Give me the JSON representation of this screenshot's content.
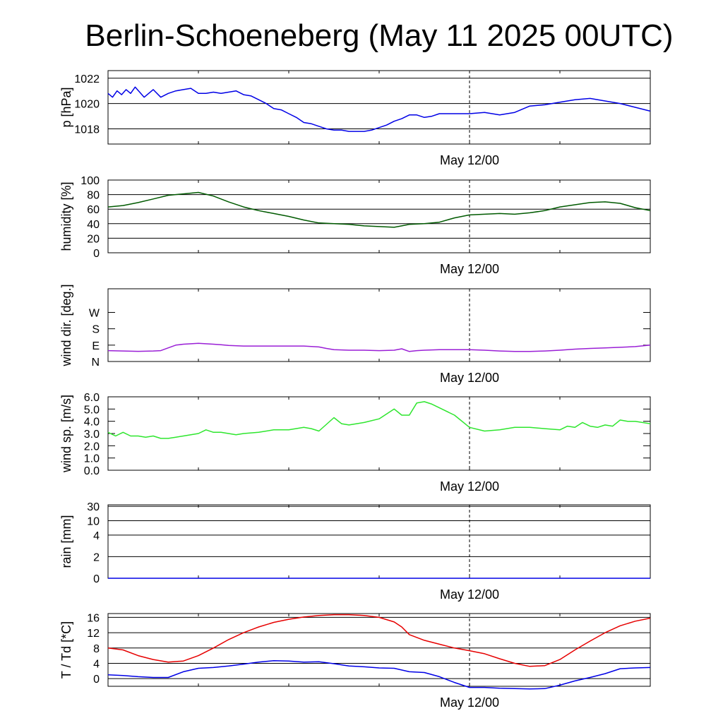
{
  "chart_data": [
    {
      "type": "line",
      "title": "Berlin-Schoeneberg (May 11 2025 00UTC)",
      "ylabel": "p [hPa]",
      "x_tick_label": "May 12/00",
      "ylim": [
        1016.8,
        1022.6
      ],
      "yticks": [
        1018,
        1020,
        1022
      ],
      "ytick_labels": [
        "1018",
        "1020",
        "1022"
      ],
      "grid": true,
      "series": [
        {
          "color": "#0000e6",
          "x": [
            0,
            0.3,
            0.6,
            0.9,
            1.2,
            1.5,
            1.8,
            2.1,
            2.4,
            2.7,
            3,
            3.5,
            4,
            4.5,
            5,
            5.5,
            6,
            6.5,
            7,
            7.5,
            8,
            8.5,
            9,
            9.5,
            10,
            10.5,
            11,
            11.5,
            12,
            12.5,
            13,
            13.5,
            14,
            14.5,
            15,
            15.5,
            16,
            16.5,
            17,
            17.5,
            18,
            18.5,
            19,
            19.5,
            20,
            20.5,
            21,
            21.5,
            22,
            22.5,
            23,
            23.5,
            24,
            25,
            26,
            27,
            28,
            29,
            30,
            31,
            32,
            33,
            34,
            35,
            36
          ],
          "y": [
            1020.8,
            1020.5,
            1021.0,
            1020.7,
            1021.1,
            1020.8,
            1021.3,
            1020.9,
            1020.5,
            1020.8,
            1021.1,
            1020.5,
            1020.8,
            1021.0,
            1021.1,
            1021.2,
            1020.8,
            1020.8,
            1020.9,
            1020.8,
            1020.9,
            1021.0,
            1020.7,
            1020.6,
            1020.3,
            1020.0,
            1019.6,
            1019.5,
            1019.2,
            1018.9,
            1018.5,
            1018.4,
            1018.2,
            1018.0,
            1017.9,
            1017.9,
            1017.8,
            1017.8,
            1017.8,
            1017.9,
            1018.1,
            1018.3,
            1018.6,
            1018.8,
            1019.1,
            1019.1,
            1018.9,
            1019.0,
            1019.2,
            1019.2,
            1019.2,
            1019.2,
            1019.2,
            1019.3,
            1019.1,
            1019.3,
            1019.8,
            1019.9,
            1020.1,
            1020.3,
            1020.4,
            1020.2,
            1020.0,
            1019.7,
            1019.4
          ]
        }
      ]
    },
    {
      "type": "line",
      "ylabel": "humidity [%]",
      "x_tick_label": "May 12/00",
      "ylim": [
        0,
        100
      ],
      "yticks": [
        0,
        20,
        40,
        60,
        80,
        100
      ],
      "ytick_labels": [
        "0",
        "20",
        "40",
        "60",
        "80",
        "100"
      ],
      "grid": true,
      "series": [
        {
          "color": "#005a00",
          "x": [
            0,
            1,
            2,
            3,
            4,
            5,
            6,
            7,
            8,
            9,
            10,
            11,
            12,
            13,
            14,
            15,
            16,
            17,
            18,
            19,
            19.5,
            20,
            21,
            22,
            23,
            24,
            25,
            26,
            27,
            28,
            29,
            30,
            31,
            32,
            33,
            34,
            35,
            36
          ],
          "y": [
            63,
            65,
            69,
            74,
            79,
            81,
            83,
            78,
            70,
            63,
            58,
            54,
            50,
            45,
            41,
            40,
            39,
            37,
            36,
            35,
            37,
            39,
            40,
            42,
            48,
            52,
            53,
            54,
            53,
            55,
            58,
            63,
            66,
            69,
            70,
            68,
            62,
            58
          ]
        }
      ]
    },
    {
      "type": "line",
      "ylabel": "wind dir. [deg.]",
      "x_tick_label": "May 12/00",
      "ylim": [
        0,
        400
      ],
      "yticks": [
        0,
        90,
        180,
        270
      ],
      "ytick_labels": [
        "N",
        "E",
        "S",
        "W"
      ],
      "grid": false,
      "series": [
        {
          "color": "#9a1fd6",
          "x": [
            0,
            1,
            2,
            3,
            3.5,
            4,
            4.5,
            5,
            6,
            7,
            7.5,
            8,
            9,
            10,
            11,
            12,
            13,
            14,
            14.5,
            15,
            16,
            17,
            18,
            19,
            19.5,
            20,
            20.5,
            21,
            22,
            23,
            24,
            25,
            26,
            27,
            28,
            29,
            30,
            31,
            32,
            33,
            34,
            35,
            36
          ],
          "y": [
            60,
            58,
            56,
            58,
            60,
            75,
            90,
            95,
            100,
            95,
            92,
            88,
            85,
            85,
            85,
            85,
            85,
            80,
            72,
            65,
            62,
            62,
            60,
            62,
            70,
            55,
            60,
            62,
            65,
            65,
            65,
            62,
            58,
            55,
            55,
            58,
            62,
            68,
            72,
            75,
            78,
            82,
            90
          ]
        }
      ]
    },
    {
      "type": "line",
      "ylabel": "wind sp. [m/s]",
      "x_tick_label": "May 12/00",
      "ylim": [
        0,
        6
      ],
      "yticks": [
        0,
        1,
        2,
        3,
        4,
        5,
        6
      ],
      "ytick_labels": [
        "0.0",
        "1.0",
        "2.0",
        "3.0",
        "4.0",
        "5.0",
        "6.0"
      ],
      "grid": false,
      "series": [
        {
          "color": "#2ee62e",
          "x": [
            0,
            0.5,
            1,
            1.5,
            2,
            2.5,
            3,
            3.5,
            4,
            4.5,
            5,
            5.5,
            6,
            6.5,
            7,
            7.5,
            8,
            8.5,
            9,
            10,
            11,
            12,
            13,
            13.5,
            14,
            15,
            15.5,
            16,
            16.5,
            17,
            18,
            19,
            19.5,
            20,
            20.5,
            21,
            21.5,
            22,
            23,
            24,
            25,
            26,
            27,
            28,
            29,
            30,
            30.5,
            31,
            31.5,
            32,
            32.5,
            33,
            33.5,
            34,
            34.5,
            35,
            36
          ],
          "y": [
            3.1,
            2.8,
            3.1,
            2.8,
            2.8,
            2.7,
            2.8,
            2.6,
            2.6,
            2.7,
            2.8,
            2.9,
            3.0,
            3.3,
            3.1,
            3.1,
            3.0,
            2.9,
            3.0,
            3.1,
            3.3,
            3.3,
            3.5,
            3.4,
            3.2,
            4.3,
            3.8,
            3.7,
            3.8,
            3.9,
            4.2,
            5.0,
            4.5,
            4.5,
            5.5,
            5.6,
            5.4,
            5.1,
            4.5,
            3.5,
            3.2,
            3.3,
            3.5,
            3.5,
            3.4,
            3.3,
            3.6,
            3.5,
            3.9,
            3.6,
            3.5,
            3.7,
            3.6,
            4.1,
            4.0,
            4.0,
            3.8
          ]
        }
      ]
    },
    {
      "type": "line",
      "ylabel": "rain [mm]",
      "x_tick_label": "May 12/00",
      "ylim": [
        0,
        30
      ],
      "yticks": [
        0,
        2,
        4,
        10,
        30
      ],
      "ytick_labels": [
        "0",
        "2",
        "4",
        "10",
        "30"
      ],
      "ytick_fractions": [
        0,
        0.294,
        0.588,
        0.784,
        0.98
      ],
      "grid": true,
      "series": [
        {
          "color": "#0000e6",
          "x": [
            0,
            36
          ],
          "y": [
            0,
            0
          ]
        }
      ]
    },
    {
      "type": "line",
      "ylabel": "T / Td [*C]",
      "x_tick_label": "May 12/00",
      "ylim": [
        -2,
        17
      ],
      "yticks": [
        0,
        4,
        8,
        12,
        16
      ],
      "ytick_labels": [
        "0",
        "4",
        "8",
        "12",
        "16"
      ],
      "grid": true,
      "series": [
        {
          "color": "#e60000",
          "x": [
            0,
            1,
            2,
            3,
            4,
            5,
            6,
            7,
            8,
            9,
            10,
            11,
            12,
            13,
            14,
            15,
            16,
            17,
            18,
            19,
            19.5,
            20,
            21,
            22,
            23,
            24,
            25,
            26,
            27,
            28,
            29,
            30,
            31,
            32,
            33,
            34,
            35,
            36
          ],
          "y": [
            8.0,
            7.5,
            6.0,
            5.0,
            4.3,
            4.6,
            6.0,
            8.0,
            10.2,
            12.0,
            13.5,
            14.7,
            15.5,
            16.1,
            16.5,
            16.7,
            16.7,
            16.5,
            16.0,
            14.8,
            13.5,
            11.5,
            10.0,
            9.0,
            8.0,
            7.3,
            6.5,
            5.2,
            4.0,
            3.2,
            3.4,
            5.0,
            7.5,
            9.8,
            12.0,
            13.8,
            15.0,
            15.8
          ]
        },
        {
          "color": "#0000e6",
          "x": [
            0,
            1,
            2,
            3,
            4,
            5,
            6,
            7,
            8,
            9,
            10,
            11,
            12,
            13,
            14,
            15,
            16,
            17,
            18,
            19,
            20,
            21,
            22,
            23,
            24,
            25,
            26,
            27,
            28,
            29,
            30,
            31,
            32,
            33,
            34,
            35,
            36
          ],
          "y": [
            1.0,
            0.8,
            0.5,
            0.3,
            0.3,
            1.8,
            2.7,
            2.9,
            3.3,
            3.8,
            4.3,
            4.7,
            4.6,
            4.3,
            4.4,
            3.9,
            3.3,
            3.1,
            2.8,
            2.7,
            1.8,
            1.6,
            0.5,
            -1.0,
            -2.3,
            -2.3,
            -2.5,
            -2.6,
            -2.7,
            -2.6,
            -1.7,
            -0.6,
            0.3,
            1.3,
            2.6,
            2.8,
            2.9
          ]
        }
      ]
    }
  ]
}
